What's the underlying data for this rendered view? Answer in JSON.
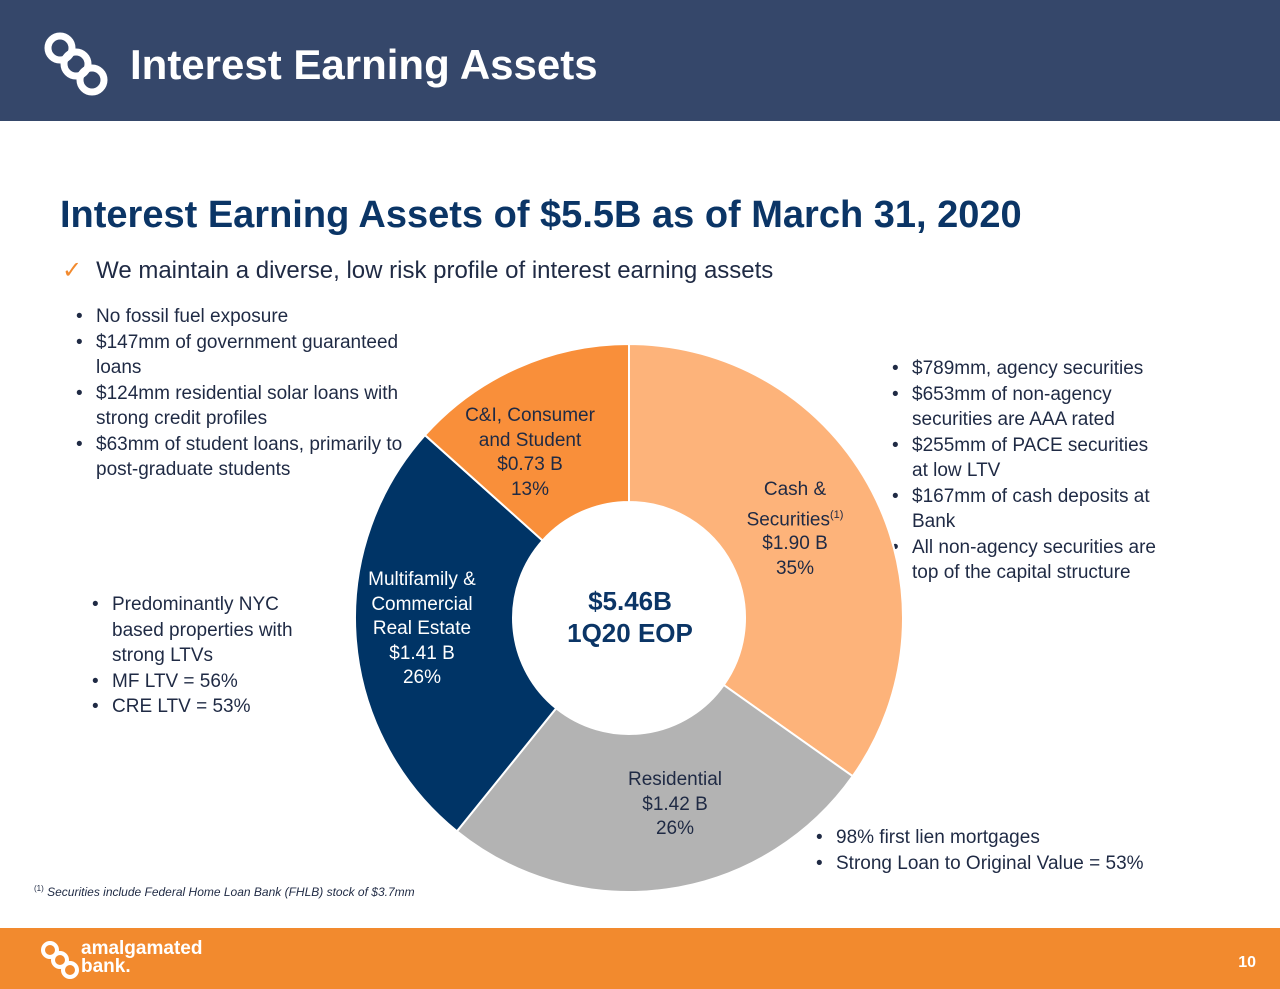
{
  "header": {
    "title": "Interest Earning Assets"
  },
  "heading": "Interest Earning Assets of $5.5B as of March 31, 2020",
  "subheading": "We maintain a diverse, low risk profile of interest earning assets",
  "bullets_left_top": [
    "No fossil fuel exposure",
    "$147mm of government guaranteed loans",
    "$124mm residential solar loans with strong credit profiles",
    "$63mm of student loans, primarily to post-graduate students"
  ],
  "bullets_left_mid": [
    "Predominantly NYC based properties with strong LTVs",
    "MF LTV = 56%",
    "CRE LTV = 53%"
  ],
  "bullets_right_top": [
    "$789mm, agency securities",
    "$653mm of non-agency securities are AAA rated",
    "$255mm of PACE securities at low LTV",
    "$167mm of cash deposits at Bank",
    "All non-agency securities are top of the capital structure"
  ],
  "bullets_bottom": [
    "98% first lien mortgages",
    "Strong Loan to Original Value = 53%"
  ],
  "chart_data": {
    "type": "pie",
    "center_text": [
      "$5.46B",
      "1Q20 EOP"
    ],
    "slices": [
      {
        "label": "Cash & Securities",
        "label_lines": [
          "Cash &",
          "Securities"
        ],
        "footnote_marker": "(1)",
        "value": 1.9,
        "value_text": "$1.90 B",
        "percent": 35,
        "percent_text": "35%",
        "color": "#fdb37a"
      },
      {
        "label": "Residential",
        "label_lines": [
          "Residential"
        ],
        "value": 1.42,
        "value_text": "$1.42 B",
        "percent": 26,
        "percent_text": "26%",
        "color": "#b3b3b3"
      },
      {
        "label": "Multifamily & Commercial Real Estate",
        "label_lines": [
          "Multifamily &",
          "Commercial",
          "Real Estate"
        ],
        "value": 1.41,
        "value_text": "$1.41 B",
        "percent": 26,
        "percent_text": "26%",
        "color": "#003466"
      },
      {
        "label": "C&I, Consumer and Student",
        "label_lines": [
          "C&I, Consumer",
          "and Student"
        ],
        "value": 0.73,
        "value_text": "$0.73 B",
        "percent": 13,
        "percent_text": "13%",
        "color": "#f98f3a"
      }
    ]
  },
  "footnote": {
    "marker": "(1)",
    "text": "Securities include Federal Home Loan Bank (FHLB) stock of $3.7mm"
  },
  "footer": {
    "brand_line1": "amalgamated",
    "brand_line2": "bank.",
    "page_number": "10"
  },
  "colors": {
    "header_bg": "#35476a",
    "footer_bg": "#f28a2e",
    "heading": "#0b3566"
  }
}
